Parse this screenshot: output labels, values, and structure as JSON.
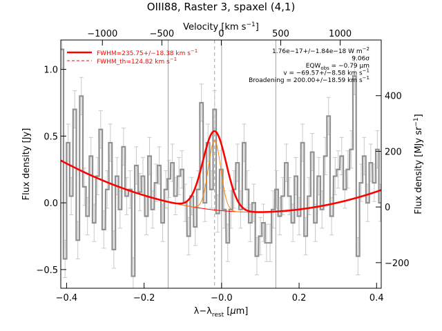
{
  "chart_data": {
    "type": "line",
    "title": "OIII88, Raster 3, spaxel (4,1)",
    "xlabel": "λ−λ",
    "xlabel_sub": "rest",
    "xlabel_unit_open": " [",
    "xlabel_unit_mu": "μ",
    "xlabel_unit_rest": "m]",
    "ylabel": "Flux density [Jy]",
    "top_axis_label": "Velocity [km s",
    "top_axis_label_sup": "−1",
    "top_axis_label_close": "]",
    "right_axis_label": "Flux density [MJy sr",
    "right_axis_label_sup": "−1",
    "right_axis_label_close": "]",
    "xlim": [
      -0.415,
      0.412
    ],
    "ylim": [
      -0.64,
      1.22
    ],
    "top_xlim": [
      -1350,
      1345
    ],
    "right_ylim": [
      -292,
      600
    ],
    "x_ticks": [
      {
        "value": -0.4,
        "label": "−0.4"
      },
      {
        "value": -0.2,
        "label": "−0.2"
      },
      {
        "value": 0.0,
        "label": "−0.0"
      },
      {
        "value": 0.2,
        "label": "0.2"
      },
      {
        "value": 0.4,
        "label": "0.4"
      }
    ],
    "y_ticks": [
      {
        "value": -0.5,
        "label": "−0.5"
      },
      {
        "value": 0.0,
        "label": "0.0"
      },
      {
        "value": 0.5,
        "label": "0.5"
      },
      {
        "value": 1.0,
        "label": "1.0"
      }
    ],
    "top_ticks": [
      {
        "value": -1000,
        "label": "−1000"
      },
      {
        "value": -500,
        "label": "−500"
      },
      {
        "value": 0,
        "label": "0"
      },
      {
        "value": 500,
        "label": "500"
      },
      {
        "value": 1000,
        "label": "1000"
      }
    ],
    "right_ticks": [
      {
        "value": -200,
        "label": "−200"
      },
      {
        "value": 0,
        "label": "0"
      },
      {
        "value": 200,
        "label": "200"
      },
      {
        "value": 400,
        "label": "400"
      }
    ],
    "vlines_solid": [
      -0.138,
      0.0,
      0.14
    ],
    "vline_dashed": -0.018,
    "legend": {
      "position": "top-left",
      "entries": [
        {
          "label": "FWHM=235.75+/−18.38 km s",
          "sup": "−1",
          "style": "solid"
        },
        {
          "label": "FWHM_th=124.82 km s",
          "sup": "−1",
          "style": "dashed"
        }
      ]
    },
    "annotations": [
      {
        "text": "1.76e−17+/−1.84e−18 W m",
        "sup": "−2"
      },
      {
        "text": "9.06σ"
      },
      {
        "text": "EQW",
        "sub": "obs",
        "text2": " = −0.79 μm"
      },
      {
        "text": "v = −69.57+/−8.58 km s",
        "sup": "−1"
      },
      {
        "text": "Broadening = 200.00+/−18.59 km s",
        "sup": "−1"
      }
    ],
    "colors": {
      "data": "#909090",
      "error": "#c8c8c8",
      "fit": "#ff0000",
      "theory": "#ff8000",
      "vline": "#a0a0a0"
    },
    "series": [
      {
        "name": "data",
        "x": [
          -0.412,
          -0.404,
          -0.396,
          -0.388,
          -0.379,
          -0.371,
          -0.362,
          -0.354,
          -0.346,
          -0.337,
          -0.329,
          -0.32,
          -0.312,
          -0.304,
          -0.295,
          -0.287,
          -0.278,
          -0.27,
          -0.262,
          -0.253,
          -0.245,
          -0.236,
          -0.228,
          -0.22,
          -0.211,
          -0.203,
          -0.194,
          -0.186,
          -0.178,
          -0.169,
          -0.161,
          -0.152,
          -0.144,
          -0.136,
          -0.127,
          -0.119,
          -0.11,
          -0.102,
          -0.094,
          -0.085,
          -0.077,
          -0.068,
          -0.06,
          -0.052,
          -0.043,
          -0.035,
          -0.026,
          -0.018,
          -0.01,
          -0.001,
          0.007,
          0.016,
          0.024,
          0.032,
          0.041,
          0.049,
          0.058,
          0.066,
          0.074,
          0.083,
          0.091,
          0.1,
          0.108,
          0.116,
          0.125,
          0.133,
          0.142,
          0.15,
          0.158,
          0.167,
          0.175,
          0.184,
          0.192,
          0.2,
          0.209,
          0.217,
          0.226,
          0.234,
          0.242,
          0.251,
          0.259,
          0.268,
          0.276,
          0.284,
          0.293,
          0.301,
          0.31,
          0.318,
          0.326,
          0.335,
          0.343,
          0.352,
          0.36,
          0.368,
          0.377,
          0.385,
          0.394,
          0.402,
          0.41
        ],
        "y": [
          1.15,
          -0.42,
          0.45,
          0.05,
          0.7,
          -0.28,
          0.8,
          0.12,
          -0.1,
          0.35,
          -0.15,
          0.2,
          0.55,
          -0.2,
          0.1,
          0.45,
          -0.35,
          0.2,
          -0.05,
          0.42,
          0.05,
          0.1,
          -0.55,
          0.28,
          0.08,
          0.2,
          -0.1,
          0.35,
          -0.05,
          0.15,
          0.28,
          -0.15,
          0.1,
          0.18,
          0.3,
          0.05,
          0.2,
          0.25,
          0.0,
          -0.25,
          0.05,
          -0.18,
          0.1,
          0.75,
          0.0,
          0.45,
          0.1,
          0.7,
          -0.08,
          0.25,
          -0.05,
          -0.3,
          -0.05,
          0.1,
          0.3,
          -0.05,
          0.45,
          0.1,
          -0.15,
          0.0,
          -0.4,
          -0.25,
          -0.15,
          -0.3,
          -0.3,
          -0.05,
          0.1,
          -0.1,
          0.05,
          0.3,
          0.05,
          -0.15,
          0.2,
          -0.1,
          0.45,
          -0.25,
          0.05,
          0.38,
          -0.15,
          0.2,
          -0.05,
          0.35,
          0.65,
          -0.1,
          0.2,
          0.25,
          0.35,
          0.1,
          0.25,
          0.4,
          0.95,
          -0.4,
          0.15,
          0.35,
          0.0,
          0.3,
          0.15,
          0.4,
          0.0
        ],
        "err": 0.14
      }
    ]
  }
}
